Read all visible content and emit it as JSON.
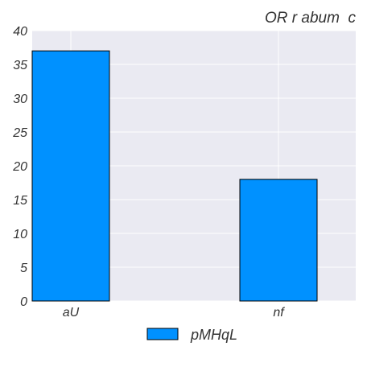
{
  "chart_data": {
    "type": "bar",
    "title": "OR r abum  c",
    "categories": [
      "aU",
      "nf"
    ],
    "series": [
      {
        "name": "pMHqL",
        "values": [
          37,
          18
        ],
        "color": "#0091ff"
      }
    ],
    "xlabel": "",
    "ylabel": "",
    "ylim": [
      0,
      40
    ],
    "yticks": [
      0,
      5,
      10,
      15,
      20,
      25,
      30,
      35,
      40
    ],
    "grid": true,
    "legend_position": "bottom-center",
    "plot_background": "#eaeaf2",
    "grid_color": "#ffffff",
    "bar_edge_color": "#000000"
  }
}
